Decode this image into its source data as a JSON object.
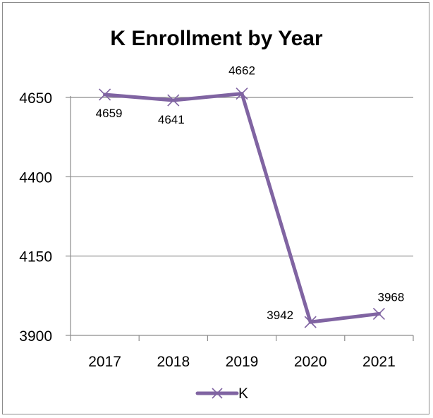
{
  "chart_data": {
    "type": "line",
    "title": "K Enrollment by Year",
    "xlabel": "",
    "ylabel": "",
    "categories": [
      "2017",
      "2018",
      "2019",
      "2020",
      "2021"
    ],
    "series": [
      {
        "name": "K",
        "values": [
          4659,
          4641,
          4662,
          3942,
          3968
        ],
        "color": "#8064a2",
        "marker": "x"
      }
    ],
    "data_labels": [
      "4659",
      "4641",
      "4662",
      "3942",
      "3968"
    ],
    "y_ticks": [
      "3900",
      "4150",
      "4400",
      "4650"
    ],
    "ylim": [
      3900,
      4650
    ],
    "gridlines": true,
    "legend_position": "bottom",
    "colors": {
      "series": "#8064a2",
      "gridline": "#8c8c8c",
      "axis": "#8c8c8c"
    }
  }
}
